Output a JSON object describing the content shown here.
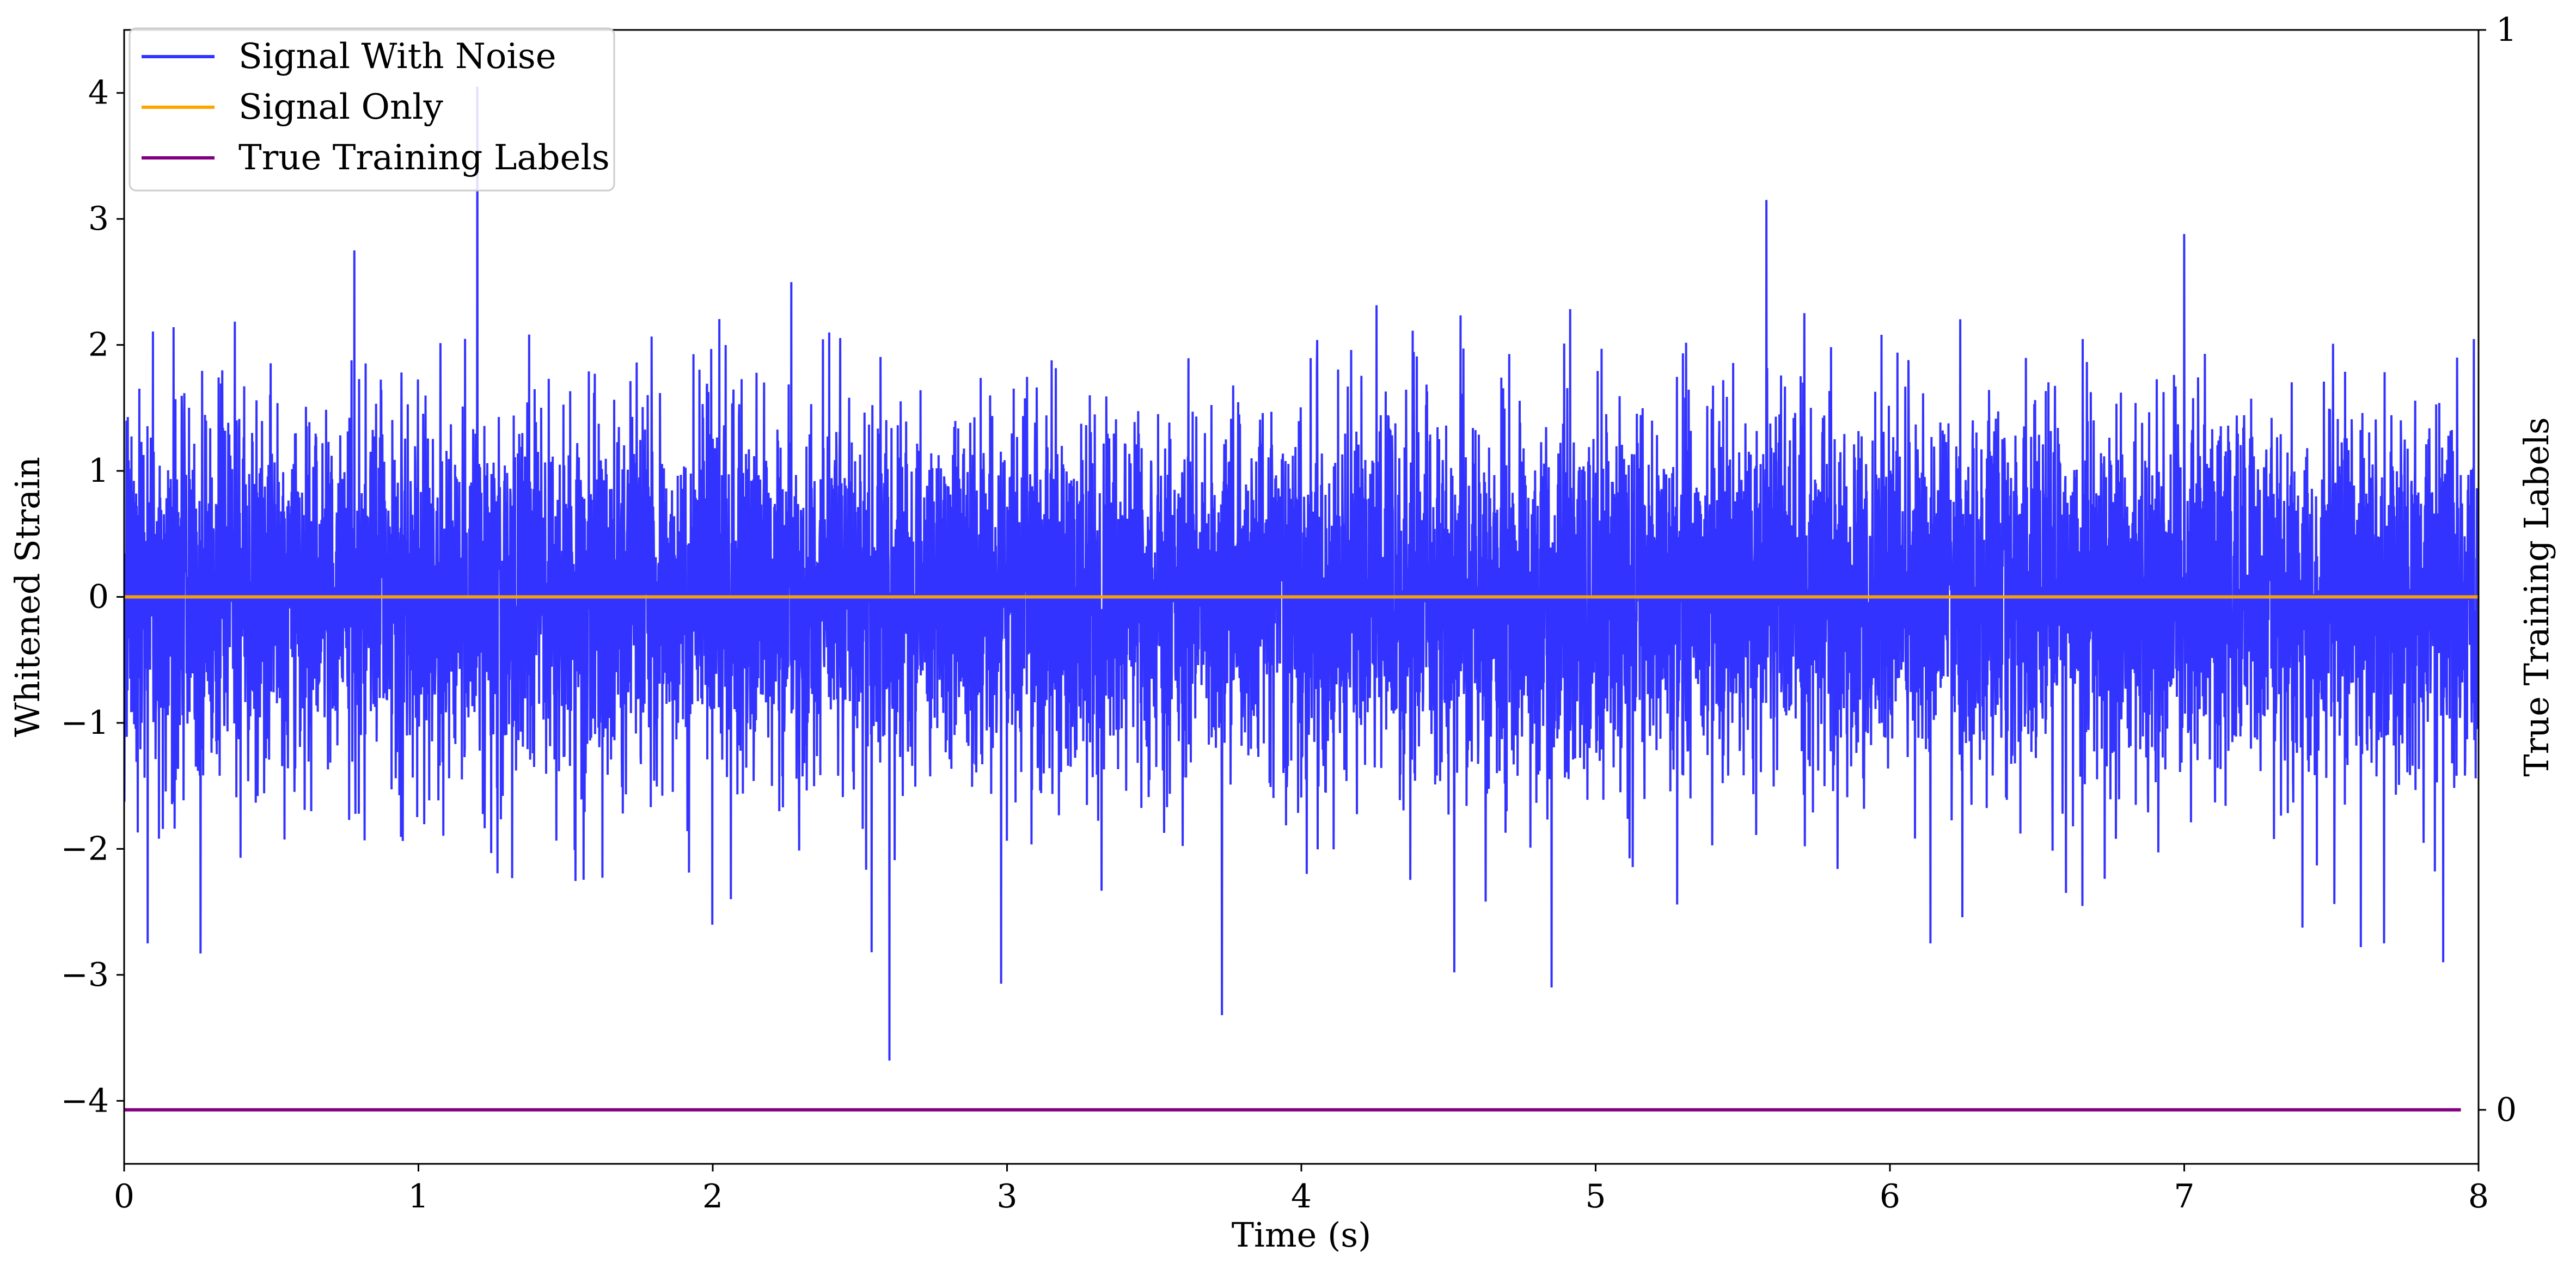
{
  "chart_data": {
    "type": "line",
    "xlabel": "Time (s)",
    "ylabel": "Whitened Strain",
    "y2label": "True Training Labels",
    "xlim": [
      0,
      8
    ],
    "ylim": [
      -4.5,
      4.5
    ],
    "y2lim": [
      -0.05,
      1.0
    ],
    "xticks": [
      "0",
      "1",
      "2",
      "3",
      "4",
      "5",
      "6",
      "7",
      "8"
    ],
    "yticks": [
      "4",
      "3",
      "2",
      "1",
      "0",
      "−1",
      "−2",
      "−3",
      "−4"
    ],
    "y2ticks": [
      "1",
      "0"
    ],
    "grid": false,
    "legend": {
      "placement": "top-left"
    },
    "series": [
      {
        "name": "Signal With Noise",
        "color": "#3333ff",
        "axis": "left",
        "kind": "dense noise, approximately zero mean, roughly ±1 typical amplitude",
        "x_range": [
          0,
          8
        ],
        "peaks": [
          {
            "x": 1.2,
            "y": 4.05
          },
          {
            "x": 5.58,
            "y": 3.15
          },
          {
            "x": 2.6,
            "y": 2.98
          },
          {
            "x": 7.0,
            "y": 2.88
          },
          {
            "x": 2.6,
            "y": -3.68
          },
          {
            "x": 3.73,
            "y": -3.32
          },
          {
            "x": 4.85,
            "y": -3.1
          },
          {
            "x": 2.98,
            "y": -3.07
          },
          {
            "x": 4.52,
            "y": -2.98
          },
          {
            "x": 7.88,
            "y": -2.9
          },
          {
            "x": 0.26,
            "y": -2.83
          },
          {
            "x": 2.54,
            "y": -2.82
          },
          {
            "x": 0.08,
            "y": -2.75
          },
          {
            "x": 7.6,
            "y": -2.78
          }
        ]
      },
      {
        "name": "Signal Only",
        "color": "#ffa500",
        "axis": "left",
        "x": [
          0,
          8
        ],
        "y": [
          0,
          0
        ]
      },
      {
        "name": "True Training Labels",
        "color": "#800080",
        "axis": "right",
        "x": [
          0,
          7.94
        ],
        "y": [
          0,
          0
        ]
      }
    ]
  }
}
